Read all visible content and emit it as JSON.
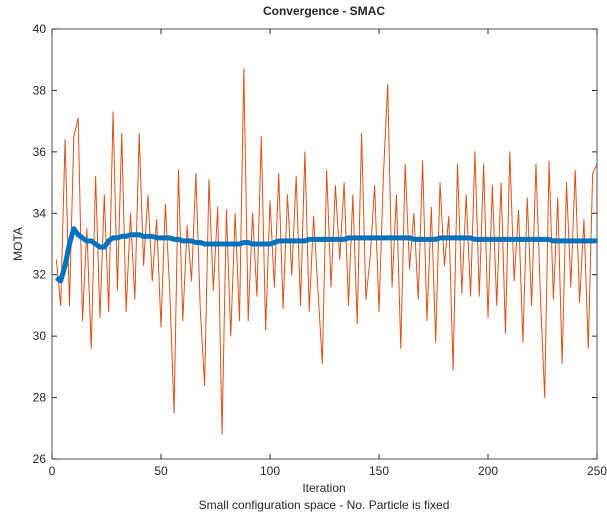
{
  "chart_data": {
    "type": "line",
    "title": "Convergence - SMAC",
    "xlabel": "Iteration",
    "ylabel": "MOTA",
    "caption": "Small configuration space - No. Particle is fixed",
    "x": [
      2,
      4,
      6,
      8,
      10,
      12,
      14,
      16,
      18,
      20,
      22,
      24,
      26,
      28,
      30,
      32,
      34,
      36,
      38,
      40,
      42,
      44,
      46,
      48,
      50,
      52,
      54,
      56,
      58,
      60,
      62,
      64,
      66,
      68,
      70,
      72,
      74,
      76,
      78,
      80,
      82,
      84,
      86,
      88,
      90,
      92,
      94,
      96,
      98,
      100,
      102,
      104,
      106,
      108,
      110,
      112,
      114,
      116,
      118,
      120,
      122,
      124,
      126,
      128,
      130,
      132,
      134,
      136,
      138,
      140,
      142,
      144,
      146,
      148,
      150,
      152,
      154,
      156,
      158,
      160,
      162,
      164,
      166,
      168,
      170,
      172,
      174,
      176,
      178,
      180,
      182,
      184,
      186,
      188,
      190,
      192,
      194,
      196,
      198,
      200,
      202,
      204,
      206,
      208,
      210,
      212,
      214,
      216,
      218,
      220,
      222,
      224,
      226,
      228,
      230,
      232,
      234,
      236,
      238,
      240,
      242,
      244,
      246,
      248,
      250
    ],
    "series": [
      {
        "color": "#d95319",
        "width": 1,
        "values": [
          32.5,
          31.0,
          36.4,
          31.0,
          36.5,
          37.1,
          30.5,
          33.5,
          29.6,
          35.2,
          30.6,
          34.6,
          30.8,
          37.3,
          31.5,
          36.6,
          30.8,
          34.0,
          31.2,
          36.6,
          32.3,
          34.6,
          31.8,
          33.8,
          30.3,
          34.3,
          31.5,
          27.5,
          35.4,
          30.5,
          33.6,
          31.8,
          35.3,
          30.9,
          28.4,
          35.1,
          31.5,
          34.2,
          26.8,
          34.1,
          30.0,
          34.0,
          30.5,
          38.7,
          30.5,
          34.0,
          31.3,
          36.5,
          30.2,
          34.4,
          31.6,
          35.3,
          30.9,
          34.6,
          32.0,
          35.2,
          31.0,
          36.0,
          30.8,
          33.9,
          31.5,
          29.1,
          35.4,
          31.6,
          34.9,
          32.5,
          35.0,
          31.0,
          34.6,
          30.4,
          36.6,
          31.2,
          32.6,
          34.9,
          30.8,
          35.2,
          38.2,
          31.6,
          34.6,
          29.6,
          35.6,
          32.2,
          34.0,
          31.2,
          35.7,
          30.5,
          34.2,
          29.8,
          35.0,
          32.3,
          33.9,
          28.9,
          35.6,
          31.4,
          34.6,
          31.3,
          36.0,
          31.3,
          35.6,
          30.6,
          34.9,
          31.0,
          35.0,
          30.1,
          36.0,
          31.8,
          34.1,
          29.8,
          34.5,
          31.0,
          35.6,
          31.4,
          28.0,
          35.7,
          31.2,
          34.5,
          29.1,
          35.0,
          31.6,
          35.4,
          31.1,
          33.8,
          29.6,
          35.3,
          35.6
        ]
      },
      {
        "color": "#0072bd",
        "width": 5,
        "values": [
          31.9,
          31.8,
          32.3,
          33.0,
          33.5,
          33.3,
          33.2,
          33.1,
          33.1,
          33.0,
          32.9,
          32.9,
          33.1,
          33.2,
          33.2,
          33.25,
          33.25,
          33.3,
          33.3,
          33.3,
          33.25,
          33.25,
          33.25,
          33.2,
          33.2,
          33.2,
          33.2,
          33.15,
          33.15,
          33.1,
          33.1,
          33.1,
          33.05,
          33.05,
          33.0,
          33.0,
          33.0,
          33.0,
          33.0,
          33.0,
          33.0,
          33.0,
          33.0,
          33.05,
          33.05,
          33.0,
          33.0,
          33.0,
          33.0,
          33.0,
          33.05,
          33.1,
          33.1,
          33.1,
          33.1,
          33.1,
          33.1,
          33.1,
          33.15,
          33.15,
          33.15,
          33.15,
          33.15,
          33.15,
          33.15,
          33.15,
          33.15,
          33.2,
          33.2,
          33.2,
          33.2,
          33.2,
          33.2,
          33.2,
          33.2,
          33.2,
          33.2,
          33.2,
          33.2,
          33.2,
          33.2,
          33.2,
          33.15,
          33.15,
          33.15,
          33.15,
          33.15,
          33.15,
          33.2,
          33.2,
          33.2,
          33.2,
          33.2,
          33.2,
          33.2,
          33.2,
          33.15,
          33.15,
          33.15,
          33.15,
          33.15,
          33.15,
          33.15,
          33.15,
          33.15,
          33.15,
          33.15,
          33.15,
          33.15,
          33.15,
          33.15,
          33.15,
          33.15,
          33.15,
          33.1,
          33.1,
          33.1,
          33.1,
          33.1,
          33.1,
          33.1,
          33.1,
          33.1,
          33.1,
          33.1
        ]
      }
    ],
    "xlim": [
      0,
      250
    ],
    "xticks": [
      0,
      50,
      100,
      150,
      200,
      250
    ],
    "ylim": [
      26,
      40
    ],
    "yticks": [
      26,
      28,
      30,
      32,
      34,
      36,
      38,
      40
    ]
  }
}
